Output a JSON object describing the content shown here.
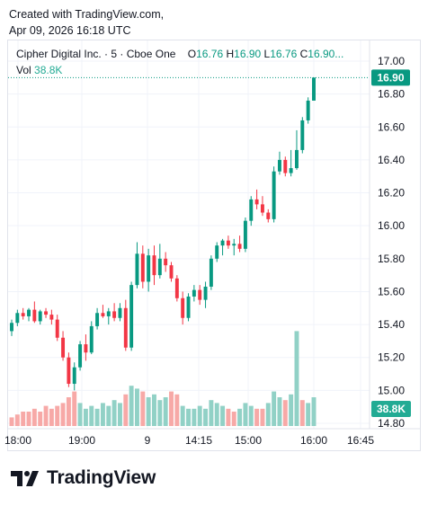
{
  "header": {
    "created_line": "Created with TradingView.com,",
    "timestamp_line": "Apr 09, 2026 16:18 UTC"
  },
  "legend": {
    "symbol": "Cipher Digital Inc. · 5 · Cboe One",
    "open_label": "O",
    "open": "16.76",
    "high_label": "H",
    "high": "16.90",
    "low_label": "L",
    "low": "16.76",
    "close_label": "C",
    "close": "16.90...",
    "vol_label": "Vol",
    "vol": "38.8K"
  },
  "badges": {
    "last_price": "16.90",
    "last_volume": "38.8K"
  },
  "logo": {
    "text": "TradingView"
  },
  "colors": {
    "up": "#089981",
    "down": "#f23645",
    "vol_up": "#91d1c6",
    "vol_down": "#f7a9a7",
    "grid": "#f0f3fa"
  },
  "chart_data": {
    "type": "candlestick",
    "y_ticks": [
      "17.00",
      "16.80",
      "16.60",
      "16.40",
      "16.20",
      "16.00",
      "15.80",
      "15.60",
      "15.40",
      "15.20",
      "15.00",
      "14.80"
    ],
    "ylim": [
      14.77,
      17.03
    ],
    "x_ticks": [
      "18:00",
      "19:00",
      "9",
      "14:15",
      "15:00",
      "16:00",
      "16:45"
    ],
    "grid": true,
    "candles": [
      [
        15.36,
        15.43,
        15.33,
        15.41
      ],
      [
        15.41,
        15.49,
        15.39,
        15.47
      ],
      [
        15.47,
        15.5,
        15.43,
        15.45
      ],
      [
        15.45,
        15.5,
        15.42,
        15.49
      ],
      [
        15.49,
        15.54,
        15.41,
        15.42
      ],
      [
        15.42,
        15.49,
        15.4,
        15.48
      ],
      [
        15.48,
        15.5,
        15.44,
        15.46
      ],
      [
        15.46,
        15.49,
        15.4,
        15.43
      ],
      [
        15.43,
        15.46,
        15.3,
        15.32
      ],
      [
        15.32,
        15.36,
        15.18,
        15.2
      ],
      [
        15.2,
        15.23,
        15.02,
        15.04
      ],
      [
        15.04,
        15.17,
        15.0,
        15.14
      ],
      [
        15.14,
        15.3,
        15.12,
        15.28
      ],
      [
        15.28,
        15.34,
        15.18,
        15.23
      ],
      [
        15.23,
        15.42,
        15.22,
        15.39
      ],
      [
        15.39,
        15.5,
        15.37,
        15.47
      ],
      [
        15.47,
        15.52,
        15.44,
        15.45
      ],
      [
        15.45,
        15.5,
        15.4,
        15.48
      ],
      [
        15.48,
        15.53,
        15.42,
        15.44
      ],
      [
        15.44,
        15.53,
        15.42,
        15.5
      ],
      [
        15.5,
        15.55,
        15.24,
        15.26
      ],
      [
        15.26,
        15.66,
        15.24,
        15.64
      ],
      [
        15.64,
        15.9,
        15.62,
        15.83
      ],
      [
        15.83,
        15.88,
        15.62,
        15.66
      ],
      [
        15.66,
        15.86,
        15.6,
        15.82
      ],
      [
        15.82,
        15.88,
        15.64,
        15.7
      ],
      [
        15.7,
        15.89,
        15.68,
        15.8
      ],
      [
        15.8,
        15.84,
        15.72,
        15.76
      ],
      [
        15.76,
        15.78,
        15.66,
        15.68
      ],
      [
        15.68,
        15.7,
        15.54,
        15.56
      ],
      [
        15.56,
        15.6,
        15.4,
        15.44
      ],
      [
        15.44,
        15.59,
        15.42,
        15.57
      ],
      [
        15.57,
        15.64,
        15.54,
        15.61
      ],
      [
        15.61,
        15.64,
        15.52,
        15.55
      ],
      [
        15.55,
        15.66,
        15.5,
        15.63
      ],
      [
        15.63,
        15.82,
        15.61,
        15.8
      ],
      [
        15.8,
        15.9,
        15.78,
        15.88
      ],
      [
        15.88,
        15.92,
        15.82,
        15.91
      ],
      [
        15.91,
        15.94,
        15.86,
        15.88
      ],
      [
        15.88,
        15.92,
        15.82,
        15.89
      ],
      [
        15.89,
        15.94,
        15.84,
        15.86
      ],
      [
        15.86,
        16.05,
        15.84,
        16.03
      ],
      [
        16.03,
        16.18,
        16.0,
        16.16
      ],
      [
        16.16,
        16.22,
        16.1,
        16.13
      ],
      [
        16.13,
        16.18,
        16.06,
        16.08
      ],
      [
        16.08,
        16.1,
        16.02,
        16.04
      ],
      [
        16.04,
        16.36,
        16.02,
        16.33
      ],
      [
        16.33,
        16.45,
        16.31,
        16.4
      ],
      [
        16.4,
        16.42,
        16.3,
        16.32
      ],
      [
        16.32,
        16.46,
        16.3,
        16.35
      ],
      [
        16.35,
        16.58,
        16.34,
        16.46
      ],
      [
        16.46,
        16.66,
        16.44,
        16.64
      ],
      [
        16.64,
        16.78,
        16.62,
        16.76
      ],
      [
        16.76,
        16.9,
        16.76,
        16.9
      ]
    ],
    "volumes": [
      [
        3,
        "d"
      ],
      [
        4,
        "d"
      ],
      [
        5,
        "d"
      ],
      [
        5,
        "d"
      ],
      [
        6,
        "d"
      ],
      [
        5,
        "d"
      ],
      [
        7,
        "d"
      ],
      [
        6,
        "d"
      ],
      [
        7,
        "d"
      ],
      [
        8,
        "d"
      ],
      [
        10,
        "d"
      ],
      [
        12,
        "d"
      ],
      [
        8,
        "u"
      ],
      [
        6,
        "u"
      ],
      [
        7,
        "u"
      ],
      [
        6,
        "u"
      ],
      [
        8,
        "u"
      ],
      [
        7,
        "u"
      ],
      [
        9,
        "u"
      ],
      [
        8,
        "u"
      ],
      [
        11,
        "d"
      ],
      [
        14,
        "u"
      ],
      [
        13,
        "u"
      ],
      [
        12,
        "d"
      ],
      [
        10,
        "u"
      ],
      [
        11,
        "u"
      ],
      [
        9,
        "u"
      ],
      [
        10,
        "u"
      ],
      [
        12,
        "d"
      ],
      [
        11,
        "d"
      ],
      [
        7,
        "u"
      ],
      [
        6,
        "u"
      ],
      [
        6,
        "u"
      ],
      [
        7,
        "u"
      ],
      [
        6,
        "u"
      ],
      [
        9,
        "u"
      ],
      [
        8,
        "u"
      ],
      [
        7,
        "u"
      ],
      [
        6,
        "d"
      ],
      [
        5,
        "d"
      ],
      [
        6,
        "u"
      ],
      [
        8,
        "u"
      ],
      [
        7,
        "u"
      ],
      [
        6,
        "d"
      ],
      [
        6,
        "d"
      ],
      [
        8,
        "u"
      ],
      [
        12,
        "u"
      ],
      [
        10,
        "u"
      ],
      [
        9,
        "d"
      ],
      [
        11,
        "u"
      ],
      [
        33,
        "u"
      ],
      [
        9,
        "d"
      ],
      [
        8,
        "u"
      ],
      [
        10,
        "u"
      ]
    ]
  }
}
